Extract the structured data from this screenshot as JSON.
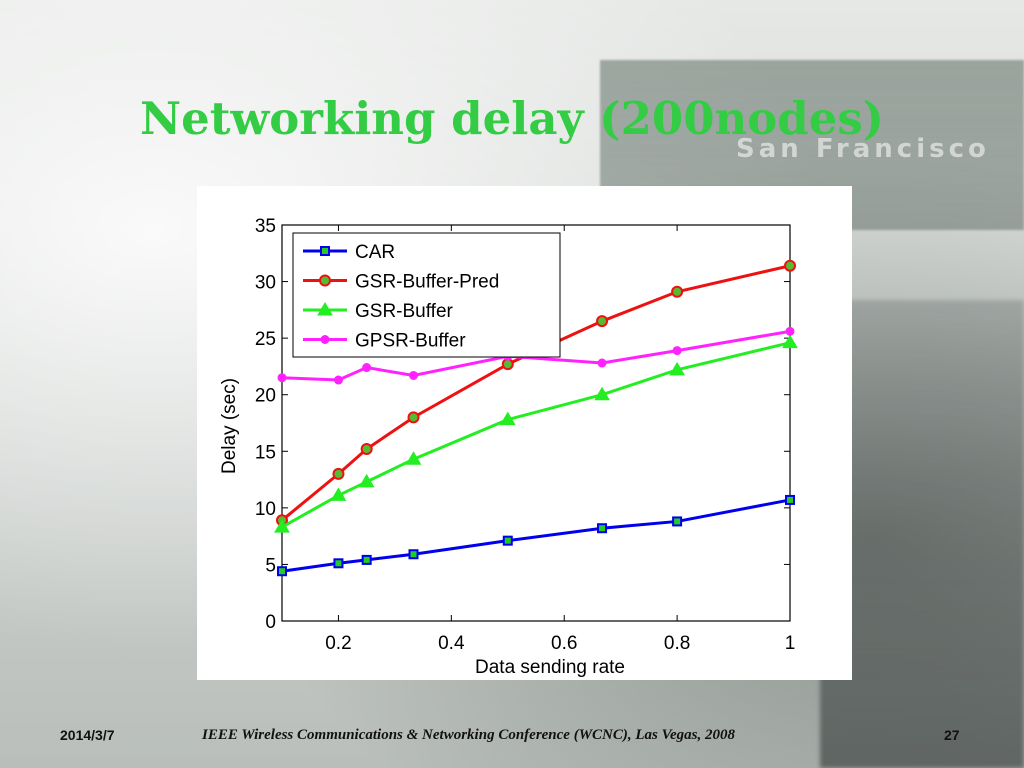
{
  "slide": {
    "title": "Networking delay (200nodes)",
    "footer_date": "2014/3/7",
    "footer_conference": "IEEE Wireless Communications & Networking Conference (WCNC), Las Vegas, 2008",
    "page_number": "27",
    "background_sign_text": "San Francisco",
    "accent_color": "#33cc44"
  },
  "chart_data": {
    "type": "line",
    "title": "",
    "xlabel": "Data sending rate",
    "ylabel": "Delay (sec)",
    "xlim": [
      0.1,
      1.0
    ],
    "ylim": [
      0,
      35
    ],
    "xticks": [
      0.2,
      0.4,
      0.6,
      0.8,
      1.0
    ],
    "xtick_labels": [
      "0.2",
      "0.4",
      "0.6",
      "0.8",
      "1"
    ],
    "yticks": [
      0,
      5,
      10,
      15,
      20,
      25,
      30,
      35
    ],
    "ytick_labels": [
      "0",
      "5",
      "10",
      "15",
      "20",
      "25",
      "30",
      "35"
    ],
    "grid": false,
    "legend_position": "top-left",
    "x": [
      0.1,
      0.2,
      0.25,
      0.333,
      0.5,
      0.667,
      0.8,
      1.0
    ],
    "series": [
      {
        "name": "CAR",
        "color": "#0000ee",
        "marker": "square",
        "marker_face": "#22cc22",
        "values": [
          4.4,
          5.1,
          5.4,
          5.9,
          7.1,
          8.2,
          8.8,
          10.7
        ]
      },
      {
        "name": "GSR-Buffer-Pred",
        "color": "#ee1111",
        "marker": "circle",
        "marker_face": "#55bb33",
        "values": [
          8.9,
          13.0,
          15.2,
          18.0,
          22.7,
          26.5,
          29.1,
          31.4
        ]
      },
      {
        "name": "GSR-Buffer",
        "color": "#22ee22",
        "marker": "triangle",
        "marker_face": "#22ee22",
        "values": [
          8.3,
          11.1,
          12.3,
          14.3,
          17.8,
          20.0,
          22.2,
          24.6
        ]
      },
      {
        "name": "GPSR-Buffer",
        "color": "#ff22ff",
        "marker": "dot",
        "marker_face": "#ff22ff",
        "values": [
          21.5,
          21.3,
          22.4,
          21.7,
          23.4,
          22.8,
          23.9,
          25.6
        ]
      }
    ]
  }
}
